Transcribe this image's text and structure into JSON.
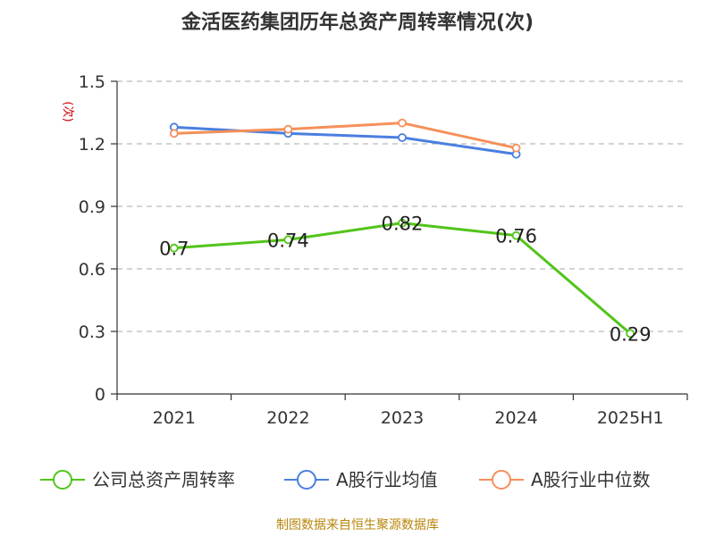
{
  "chart_data": {
    "type": "line",
    "title": "金活医药集团历年总资产周转率情况(次)",
    "ylabel": "(次)",
    "xlabel": "",
    "categories": [
      "2021",
      "2022",
      "2023",
      "2024",
      "2025H1"
    ],
    "ylim": [
      0,
      1.5
    ],
    "yticks": [
      "0",
      "0.3",
      "0.6",
      "0.9",
      "1.2",
      "1.5"
    ],
    "grid": true,
    "legend_position": "bottom",
    "series": [
      {
        "name": "公司总资产周转率",
        "color": "#52c41a",
        "values": [
          0.7,
          0.74,
          0.82,
          0.76,
          0.29
        ],
        "labels": [
          "0.7",
          "0.74",
          "0.82",
          "0.76",
          "0.29"
        ]
      },
      {
        "name": "A股行业均值",
        "color": "#4a7fe0",
        "values": [
          1.28,
          1.25,
          1.23,
          1.15,
          null
        ]
      },
      {
        "name": "A股行业中位数",
        "color": "#f5905a",
        "values": [
          1.25,
          1.27,
          1.3,
          1.18,
          null
        ]
      }
    ],
    "source": "制图数据来自恒生聚源数据库"
  }
}
